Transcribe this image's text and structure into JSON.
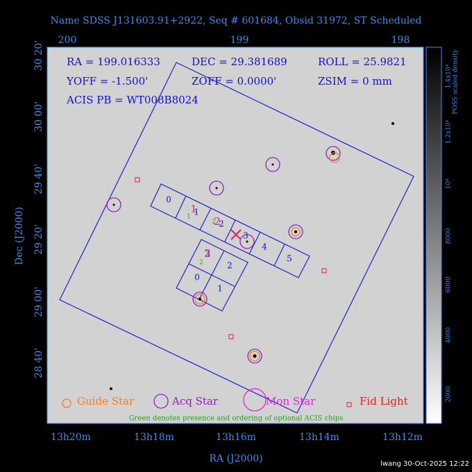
{
  "header": {
    "title": "Name SDSS J131603.91+2922, Seq # 601684, Obsid 31972, ST Scheduled"
  },
  "info": [
    "RA = 199.016333",
    "DEC = 29.381689",
    "ROLL = 25.9821",
    "YOFF =  -1.500'",
    "ZOFF =  0.0000'",
    "ZSIM = 0 mm",
    "ACIS PB = WT008B8024"
  ],
  "top_axis": {
    "ticks": [
      "200",
      "199",
      "198"
    ]
  },
  "bottom_axis": {
    "ticks": [
      "13h20m",
      "13h18m",
      "13h16m",
      "13h14m",
      "13h12m"
    ],
    "label": "RA (J2000)"
  },
  "left_axis": {
    "ticks": [
      "30 20'",
      "30 00'",
      "29 40'",
      "29 20'",
      "29 00'",
      "28 40'"
    ],
    "label": "Dec (J2000)"
  },
  "colorbar": {
    "label": "POSS scaled density",
    "ticks": [
      "2000",
      "4000",
      "6000",
      "8000",
      "10⁴",
      "1.2x10⁴",
      "1.4x10⁴"
    ]
  },
  "legend": [
    "Guide Star",
    "Acq Star",
    "Mon Star",
    "Fid Light"
  ],
  "note": "Green denotes presence and ordering of optional ACIS chips",
  "chips": {
    "s_labels": [
      "0",
      "1",
      "2",
      "3",
      "4",
      "5"
    ],
    "i_labels": [
      "0",
      "1",
      "2",
      "3"
    ],
    "optional": [
      "1",
      "2",
      "2"
    ],
    "order": [
      "1",
      "2",
      "2"
    ]
  },
  "footer": "lwang 30-Oct-2025 12:22"
}
